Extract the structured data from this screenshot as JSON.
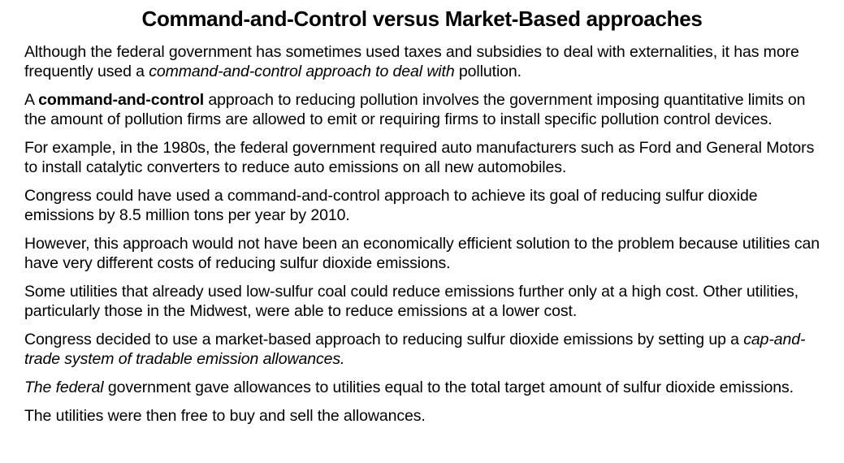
{
  "page": {
    "title": "Command-and-Control versus Market-Based approaches",
    "background_color": "#ffffff",
    "text_color": "#000000"
  },
  "paragraphs": [
    {
      "runs": [
        {
          "t": "Although the federal government has sometimes used taxes and subsidies to deal with externalities, it has more frequently used a ",
          "s": "n"
        },
        {
          "t": "command-and-control approach to deal with",
          "s": "i"
        },
        {
          "t": " pollution.",
          "s": "n"
        }
      ]
    },
    {
      "runs": [
        {
          "t": "A ",
          "s": "n"
        },
        {
          "t": "command-and-control",
          "s": "b"
        },
        {
          "t": " approach to reducing pollution involves the government imposing quantitative limits on the amount of pollution firms are allowed to emit or requiring firms to install specific pollution control devices.",
          "s": "n"
        }
      ]
    },
    {
      "runs": [
        {
          "t": "For example, in the 1980s, the federal government required auto manufacturers such as Ford and General Motors to install catalytic converters to reduce auto emissions on all new automobiles.",
          "s": "n"
        }
      ]
    },
    {
      "runs": [
        {
          "t": "Congress could have used a command-and-control approach to achieve its goal of reducing sulfur dioxide emissions by 8.5 million tons per year by 2010.",
          "s": "n"
        }
      ]
    },
    {
      "runs": [
        {
          "t": "However, this approach would not have been an economically efficient solution to the problem because utilities can have very different costs of reducing sulfur dioxide emissions.",
          "s": "n"
        }
      ]
    },
    {
      "runs": [
        {
          "t": "Some utilities that already used low-sulfur coal could reduce emissions further only at a high cost. Other utilities, particularly those in the Midwest, were able to reduce emissions at a lower cost.",
          "s": "n"
        }
      ]
    },
    {
      "runs": [
        {
          "t": "Congress decided to use a market-based approach to reducing sulfur dioxide emissions by setting up a ",
          "s": "n"
        },
        {
          "t": "cap-and-trade system of tradable emission allowances.",
          "s": "i"
        }
      ]
    },
    {
      "runs": [
        {
          "t": "The federal",
          "s": "i"
        },
        {
          "t": " government gave allowances to utilities equal to the total target amount of sulfur dioxide emissions.",
          "s": "n"
        }
      ]
    },
    {
      "runs": [
        {
          "t": "The utilities were then free to buy and sell the allowances.",
          "s": "n"
        }
      ]
    }
  ]
}
